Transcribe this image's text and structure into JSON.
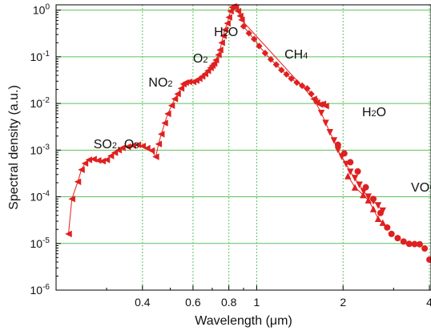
{
  "chart_data": {
    "type": "scatter",
    "xlabel": "Wavelength (μm)",
    "ylabel": "Spectral density (a.u.)",
    "xscale": "log",
    "yscale": "log",
    "xlim": [
      0.2,
      4.05
    ],
    "ylim": [
      1e-06,
      1.3
    ],
    "grid": true,
    "x_ticks": [
      {
        "value": 0.4,
        "label": "0.4"
      },
      {
        "value": 0.6,
        "label": "0.6"
      },
      {
        "value": 0.8,
        "label": "0.8"
      },
      {
        "value": 1,
        "label": "1"
      },
      {
        "value": 2,
        "label": "2"
      },
      {
        "value": 4,
        "label": "4"
      }
    ],
    "y_ticks": [
      {
        "value": 1,
        "base": "10",
        "exp": "0"
      },
      {
        "value": 0.1,
        "base": "10",
        "exp": "-1"
      },
      {
        "value": 0.01,
        "base": "10",
        "exp": "-2"
      },
      {
        "value": 0.001,
        "base": "10",
        "exp": "-3"
      },
      {
        "value": 0.0001,
        "base": "10",
        "exp": "-4"
      },
      {
        "value": 1e-05,
        "base": "10",
        "exp": "-5"
      },
      {
        "value": 1e-06,
        "base": "10",
        "exp": "-6"
      }
    ],
    "colors": {
      "series": "#e02020",
      "grid": "#5cc25c",
      "axis": "#000000"
    },
    "annotations": [
      {
        "pre": "H",
        "sub": "2",
        "post": "O",
        "x": 0.71,
        "y": 0.28
      },
      {
        "pre": "O",
        "sub": "2",
        "post": "",
        "x": 0.6,
        "y": 0.075
      },
      {
        "pre": "NO",
        "sub": "2",
        "post": "",
        "x": 0.42,
        "y": 0.023
      },
      {
        "pre": "SO",
        "sub": "2",
        "post": ", O",
        "sub2": "3",
        "x": 0.27,
        "y": 0.0011
      },
      {
        "pre": "CH",
        "sub": "4",
        "post": "",
        "x": 1.25,
        "y": 0.092
      },
      {
        "pre": "H",
        "sub": "2",
        "post": "O",
        "x": 2.33,
        "y": 0.0053
      },
      {
        "pre": "VOCs",
        "sub": "",
        "post": "",
        "x": 3.45,
        "y": 0.00013
      }
    ],
    "series": [
      {
        "marker": "triangle-left",
        "points": [
          [
            0.221,
            1.6e-05
          ],
          [
            0.227,
            9e-05
          ],
          [
            0.238,
            0.00021
          ],
          [
            0.245,
            0.00038
          ],
          [
            0.252,
            0.00052
          ],
          [
            0.26,
            0.00062
          ],
          [
            0.27,
            0.00064
          ],
          [
            0.28,
            0.0006
          ],
          [
            0.29,
            0.00058
          ],
          [
            0.3,
            0.00062
          ],
          [
            0.31,
            0.00075
          ],
          [
            0.32,
            0.00088
          ],
          [
            0.33,
            0.001
          ],
          [
            0.34,
            0.00112
          ],
          [
            0.355,
            0.00118
          ],
          [
            0.37,
            0.00125
          ],
          [
            0.385,
            0.0013
          ],
          [
            0.4,
            0.00122
          ],
          [
            0.415,
            0.0011
          ],
          [
            0.43,
            0.00098
          ],
          [
            0.445,
            0.00072
          ],
          [
            0.455,
            0.00135
          ],
          [
            0.465,
            0.0022
          ],
          [
            0.478,
            0.0038
          ],
          [
            0.49,
            0.006
          ],
          [
            0.505,
            0.009
          ],
          [
            0.518,
            0.0125
          ],
          [
            0.53,
            0.016
          ],
          [
            0.545,
            0.021
          ],
          [
            0.555,
            0.026
          ],
          [
            0.565,
            0.028
          ],
          [
            0.58,
            0.029
          ],
          [
            0.6,
            0.029
          ],
          [
            0.615,
            0.031
          ],
          [
            0.63,
            0.034
          ],
          [
            0.645,
            0.038
          ],
          [
            0.66,
            0.043
          ],
          [
            0.675,
            0.05
          ],
          [
            0.69,
            0.058
          ],
          [
            0.7,
            0.065
          ],
          [
            0.71,
            0.072
          ],
          [
            0.72,
            0.085
          ],
          [
            0.735,
            0.11
          ],
          [
            0.745,
            0.14
          ],
          [
            0.755,
            0.2
          ],
          [
            0.765,
            0.28
          ],
          [
            0.775,
            0.38
          ],
          [
            0.79,
            0.52
          ],
          [
            0.8,
            0.7
          ],
          [
            0.81,
            0.95
          ],
          [
            0.82,
            1.15
          ],
          [
            0.83,
            1.2
          ],
          [
            0.845,
            1.15
          ],
          [
            0.86,
            0.95
          ],
          [
            0.875,
            0.75
          ],
          [
            0.885,
            0.62
          ],
          [
            1.58,
            0.0125
          ],
          [
            1.62,
            0.0105
          ],
          [
            1.66,
            0.0095
          ],
          [
            1.7,
            0.0098
          ],
          [
            1.74,
            0.0088
          ]
        ]
      },
      {
        "marker": "diamond",
        "points": [
          [
            0.9,
            0.45
          ],
          [
            0.94,
            0.32
          ],
          [
            0.98,
            0.24
          ],
          [
            1.02,
            0.17
          ],
          [
            1.07,
            0.12
          ],
          [
            1.12,
            0.088
          ],
          [
            1.17,
            0.068
          ],
          [
            1.22,
            0.052
          ],
          [
            1.27,
            0.042
          ],
          [
            1.32,
            0.034
          ],
          [
            1.38,
            0.028
          ],
          [
            1.44,
            0.024
          ],
          [
            1.5,
            0.021
          ],
          [
            1.55,
            0.016
          ]
        ]
      },
      {
        "marker": "triangle-down",
        "points": [
          [
            1.6,
            0.011
          ],
          [
            1.68,
            0.0062
          ],
          [
            1.74,
            0.0038
          ],
          [
            1.8,
            0.0024
          ],
          [
            1.86,
            0.0016
          ],
          [
            1.92,
            0.001
          ],
          [
            1.98,
            0.00072
          ],
          [
            2.05,
            0.0005
          ],
          [
            2.12,
            0.00034
          ],
          [
            2.2,
            0.00025
          ],
          [
            2.28,
            0.00018
          ],
          [
            2.36,
            0.00013
          ],
          [
            2.45,
            0.0001
          ],
          [
            2.55,
            8e-05
          ],
          [
            2.65,
            6.5e-05
          ],
          [
            2.75,
            5e-05
          ]
        ]
      },
      {
        "marker": "triangle-up",
        "points": [
          [
            2.08,
            0.00028
          ],
          [
            2.2,
            0.00016
          ],
          [
            2.35,
            0.00011
          ],
          [
            2.45,
            8.5e-05
          ],
          [
            2.55,
            5.5e-05
          ],
          [
            2.65,
            3.4e-05
          ],
          [
            2.75,
            2.8e-05
          ]
        ]
      },
      {
        "marker": "circle",
        "points": [
          [
            1.92,
            0.0013
          ],
          [
            2.02,
            0.00085
          ],
          [
            2.12,
            0.00055
          ],
          [
            2.25,
            0.00035
          ],
          [
            2.4,
            0.00016
          ],
          [
            2.55,
            9e-05
          ],
          [
            2.7,
            4.5e-05
          ],
          [
            2.85,
            2.2e-05
          ],
          [
            2.95,
            1.6e-05
          ],
          [
            3.1,
            1.3e-05
          ],
          [
            3.25,
            1.1e-05
          ],
          [
            3.4,
            9.8e-06
          ],
          [
            3.55,
            9.7e-06
          ],
          [
            3.7,
            9.6e-06
          ],
          [
            3.85,
            7.8e-06
          ],
          [
            4.0,
            4.5e-06
          ]
        ]
      }
    ]
  }
}
